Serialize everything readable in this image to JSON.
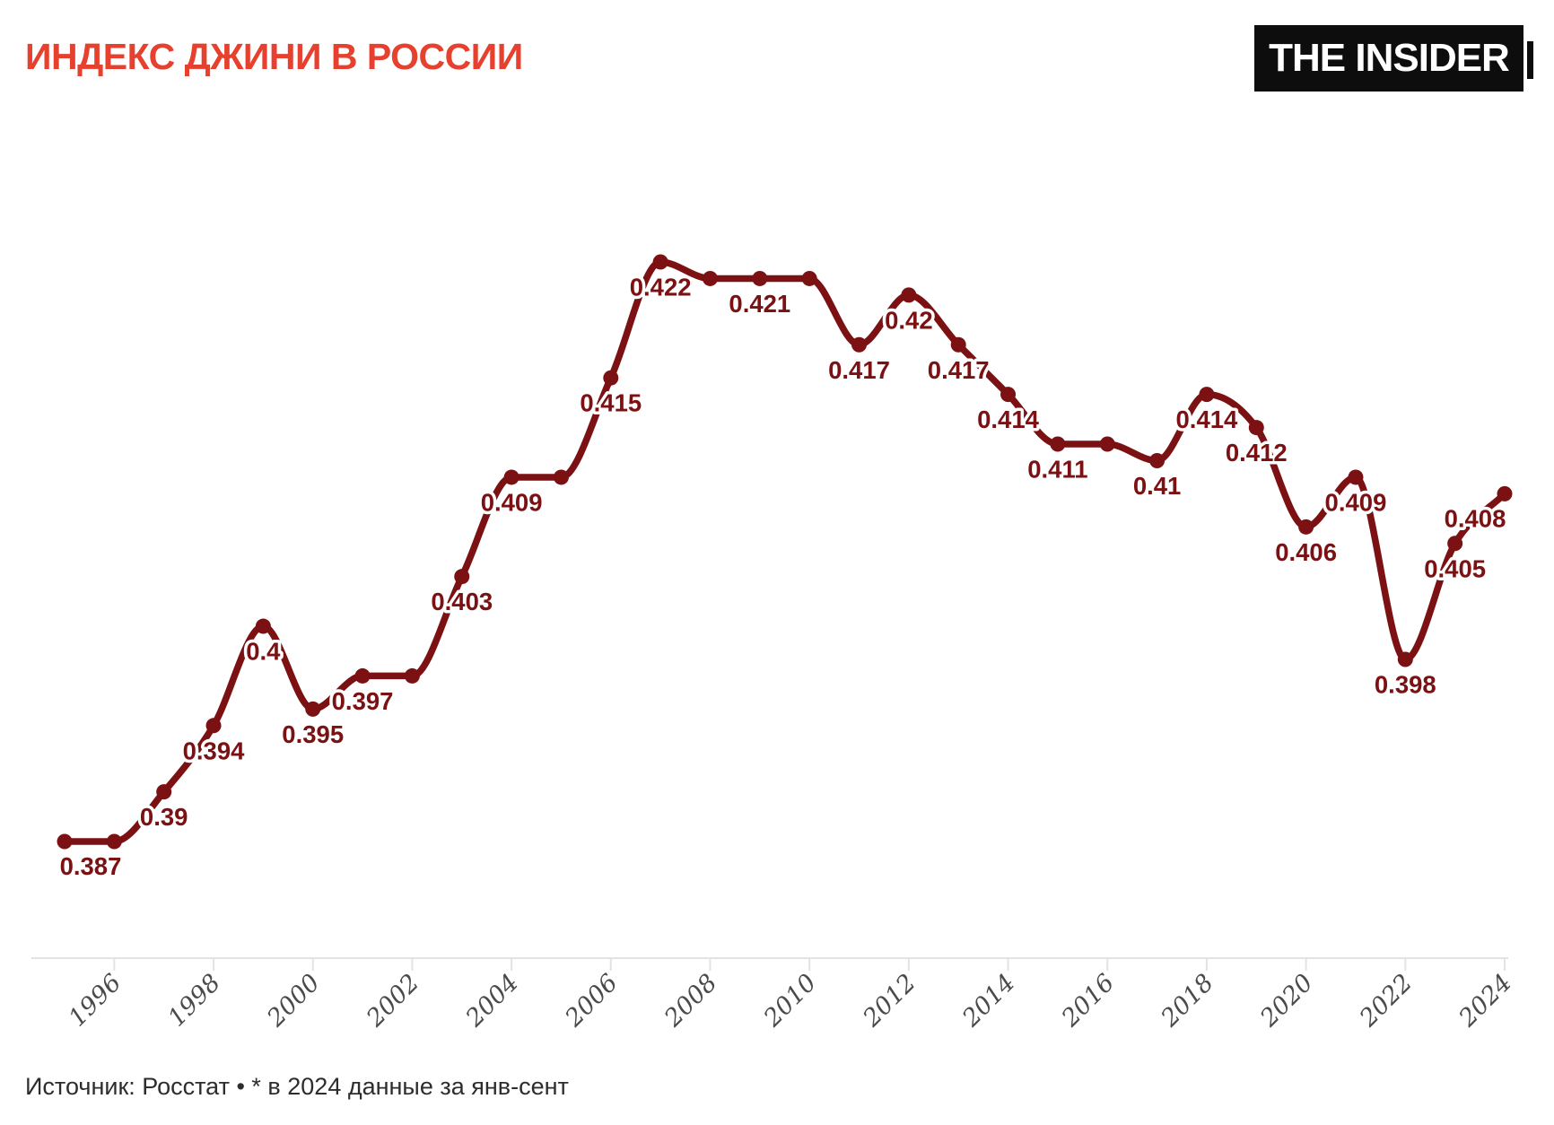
{
  "header": {
    "title": "ИНДЕКС ДЖИНИ В РОССИИ",
    "logo_text": "THE INSIDER"
  },
  "footer": {
    "source": "Источник: Росстат • * в 2024 данные за янв-сент"
  },
  "colors": {
    "line": "#7b1113",
    "title": "#e6402f",
    "tick_text": "#4a4a4a",
    "source_text": "#2d2d2d",
    "axis": "#e3e3e3",
    "label_halo": "#ffffff",
    "logo_bg": "#0d0d0d",
    "logo_text": "#ffffff"
  },
  "chart_data": {
    "type": "line",
    "title": "ИНДЕКС ДЖИНИ В РОССИИ",
    "xlabel": "",
    "ylabel": "",
    "grid": false,
    "legend": false,
    "x": [
      1995,
      1996,
      1997,
      1998,
      1999,
      2000,
      2001,
      2002,
      2003,
      2004,
      2005,
      2006,
      2007,
      2008,
      2009,
      2010,
      2011,
      2012,
      2013,
      2014,
      2015,
      2016,
      2017,
      2018,
      2019,
      2020,
      2021,
      2022,
      2023,
      2024
    ],
    "values": [
      0.387,
      0.387,
      0.39,
      0.394,
      0.4,
      0.395,
      0.397,
      0.397,
      0.403,
      0.409,
      0.409,
      0.415,
      0.422,
      0.421,
      0.421,
      0.421,
      0.417,
      0.42,
      0.417,
      0.414,
      0.411,
      0.411,
      0.41,
      0.414,
      0.412,
      0.406,
      0.409,
      0.398,
      0.405,
      0.408
    ],
    "point_labels": [
      "0.387",
      null,
      "0.39",
      "0.394",
      "0.4",
      "0.395",
      "0.397",
      null,
      "0.403",
      "0.409",
      null,
      "0.415",
      "0.422",
      null,
      "0.421",
      null,
      "0.417",
      "0.42",
      "0.417",
      "0.414",
      "0.411",
      null,
      "0.41",
      "0.414",
      "0.412",
      "0.406",
      "0.409",
      "0.398",
      "0.405",
      "0.408"
    ],
    "x_ticks": [
      1996,
      1998,
      2000,
      2002,
      2004,
      2006,
      2008,
      2010,
      2012,
      2014,
      2016,
      2018,
      2020,
      2022,
      2024
    ],
    "ylim": [
      0.385,
      0.424
    ]
  }
}
